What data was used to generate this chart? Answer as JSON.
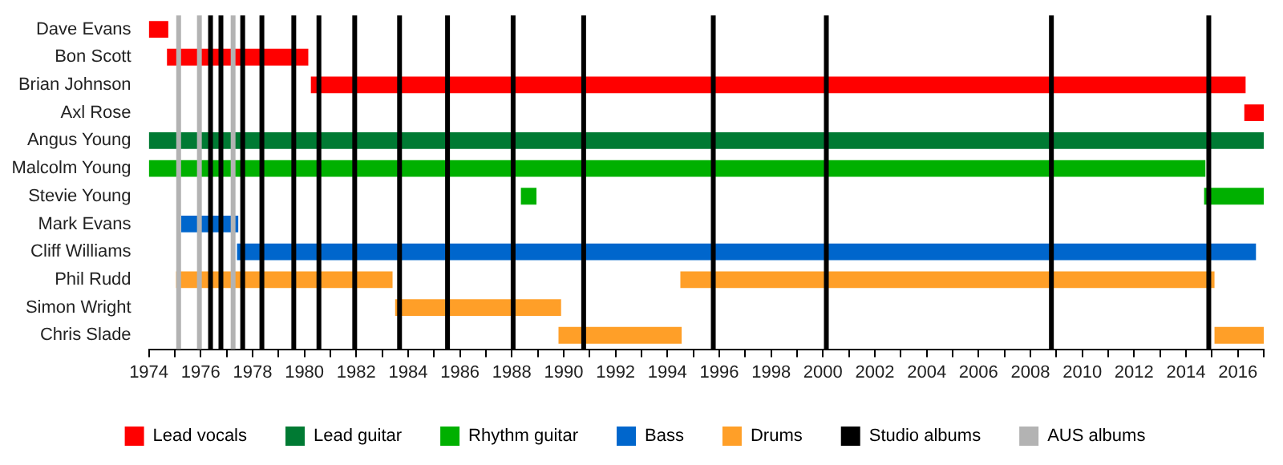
{
  "chart_data": {
    "type": "bar",
    "orientation": "horizontal",
    "categories": [
      "Dave Evans",
      "Bon Scott",
      "Brian Johnson",
      "Axl Rose",
      "Angus Young",
      "Malcolm Young",
      "Stevie Young",
      "Mark Evans",
      "Cliff Williams",
      "Phil Rudd",
      "Simon Wright",
      "Chris Slade"
    ],
    "series": [
      {
        "name": "Lead vocals",
        "color": "#ff0000",
        "base": [
          1974,
          1974.7,
          1980.25,
          2016.25,
          null,
          null,
          null,
          null,
          null,
          null,
          null,
          null
        ],
        "values": [
          0.75,
          5.45,
          36.05,
          0.75,
          null,
          null,
          null,
          null,
          null,
          null,
          null,
          null
        ]
      },
      {
        "name": "Lead guitar",
        "color": "#007a33",
        "base": [
          null,
          null,
          null,
          null,
          1974,
          null,
          null,
          null,
          null,
          null,
          null,
          null
        ],
        "values": [
          null,
          null,
          null,
          null,
          43,
          null,
          null,
          null,
          null,
          null,
          null,
          null
        ]
      },
      {
        "name": "Rhythm guitar",
        "color": "#00b000",
        "base": [
          null,
          null,
          null,
          null,
          null,
          1974,
          1988.35,
          null,
          null,
          null,
          null,
          null
        ],
        "values": [
          null,
          null,
          null,
          null,
          null,
          40.75,
          0.6,
          null,
          null,
          null,
          null,
          null
        ]
      },
      {
        "color": "#00b000",
        "base": [
          null,
          null,
          null,
          null,
          null,
          null,
          2014.7,
          null,
          null,
          null,
          null,
          null
        ],
        "values": [
          null,
          null,
          null,
          null,
          null,
          null,
          2.3,
          null,
          null,
          null,
          null,
          null
        ]
      },
      {
        "name": "Bass",
        "color": "#0066cc",
        "base": [
          null,
          null,
          null,
          null,
          null,
          null,
          null,
          1975.25,
          1977.4,
          null,
          null,
          null
        ],
        "values": [
          null,
          null,
          null,
          null,
          null,
          null,
          null,
          2.2,
          39.3,
          null,
          null,
          null
        ]
      },
      {
        "name": "Drums",
        "color": "#ff9f28",
        "base": [
          null,
          null,
          null,
          null,
          null,
          null,
          null,
          null,
          null,
          1975.05,
          1983.5,
          1989.8
        ],
        "values": [
          null,
          null,
          null,
          null,
          null,
          null,
          null,
          null,
          null,
          8.35,
          6.4,
          4.75
        ]
      },
      {
        "color": "#ff9f28",
        "base": [
          null,
          null,
          null,
          null,
          null,
          null,
          null,
          null,
          null,
          1994.5,
          null,
          2015.1
        ],
        "values": [
          null,
          null,
          null,
          null,
          null,
          null,
          null,
          null,
          null,
          20.6,
          null,
          1.9
        ]
      }
    ],
    "xlim": [
      1974,
      2017
    ],
    "xticks": [
      1974,
      {
        "value": 1975,
        "label": null
      },
      1976,
      {
        "value": 1977,
        "label": null
      },
      1978,
      {
        "value": 1979,
        "label": null
      },
      1980,
      {
        "value": 1981,
        "label": null
      },
      1982,
      {
        "value": 1983,
        "label": null
      },
      1984,
      {
        "value": 1985,
        "label": null
      },
      1986,
      {
        "value": 1987,
        "label": null
      },
      1988,
      {
        "value": 1989,
        "label": null
      },
      1990,
      {
        "value": 1991,
        "label": null
      },
      1992,
      {
        "value": 1993,
        "label": null
      },
      1994,
      {
        "value": 1995,
        "label": null
      },
      1996,
      {
        "value": 1997,
        "label": null
      },
      1998,
      {
        "value": 1999,
        "label": null
      },
      2000,
      {
        "value": 2001,
        "label": null
      },
      2002,
      {
        "value": 2003,
        "label": null
      },
      2004,
      {
        "value": 2005,
        "label": null
      },
      2006,
      {
        "value": 2007,
        "label": null
      },
      2008,
      {
        "value": 2009,
        "label": null
      },
      2010,
      {
        "value": 2011,
        "label": null
      },
      2012,
      {
        "value": 2013,
        "label": null
      },
      2014,
      {
        "value": 2015,
        "label": null
      },
      2016,
      {
        "value": 2017,
        "label": null
      }
    ],
    "ref_lines": [
      {
        "axis": "x",
        "value": 1976.38,
        "label": "Studio albums",
        "color": "#000000"
      },
      {
        "axis": "x",
        "value": 1976.78,
        "color": "#000000"
      },
      {
        "axis": "x",
        "value": 1977.62,
        "color": "#000000"
      },
      {
        "axis": "x",
        "value": 1978.36,
        "color": "#000000"
      },
      {
        "axis": "x",
        "value": 1979.59,
        "color": "#000000"
      },
      {
        "axis": "x",
        "value": 1980.56,
        "color": "#000000"
      },
      {
        "axis": "x",
        "value": 1981.94,
        "color": "#000000"
      },
      {
        "axis": "x",
        "value": 1983.67,
        "color": "#000000"
      },
      {
        "axis": "x",
        "value": 1985.52,
        "color": "#000000"
      },
      {
        "axis": "x",
        "value": 1988.05,
        "color": "#000000"
      },
      {
        "axis": "x",
        "value": 1990.77,
        "color": "#000000"
      },
      {
        "axis": "x",
        "value": 1995.77,
        "color": "#000000"
      },
      {
        "axis": "x",
        "value": 2000.13,
        "color": "#000000"
      },
      {
        "axis": "x",
        "value": 2008.81,
        "color": "#000000"
      },
      {
        "axis": "x",
        "value": 2014.88,
        "color": "#000000"
      },
      {
        "axis": "x",
        "value": 1975.15,
        "label": "AUS albums",
        "color": "#b3b3b3"
      },
      {
        "axis": "x",
        "value": 1975.95,
        "color": "#b3b3b3"
      },
      {
        "axis": "x",
        "value": 1977.25,
        "color": "#b3b3b3"
      }
    ],
    "grid": false,
    "legend": "bottom"
  }
}
